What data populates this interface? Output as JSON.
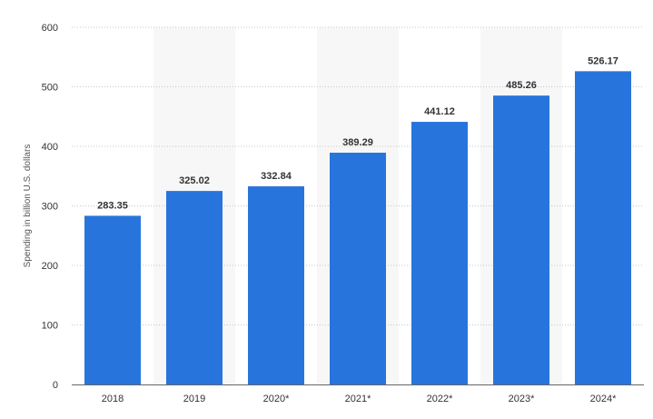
{
  "chart_data": {
    "type": "bar",
    "categories": [
      "2018",
      "2019",
      "2020*",
      "2021*",
      "2022*",
      "2023*",
      "2024*"
    ],
    "values": [
      283.35,
      325.02,
      332.84,
      389.29,
      441.12,
      485.26,
      526.17
    ],
    "data_labels": [
      "283.35",
      "325.02",
      "332.84",
      "389.29",
      "441.12",
      "485.26",
      "526.17"
    ],
    "ylabel": "Spending in billion U.S. dollars",
    "ylim": [
      0,
      600
    ],
    "yticks": [
      0,
      100,
      200,
      300,
      400,
      500,
      600
    ],
    "grid": true,
    "bar_color": "#2775dc",
    "band_color": "#f7f7f7",
    "grid_color": "#c8c8c8",
    "axis_color": "#666666",
    "text_color": "#333333"
  }
}
